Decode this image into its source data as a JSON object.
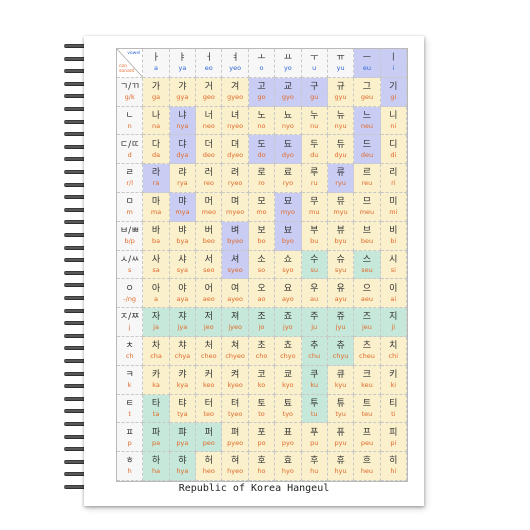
{
  "caption": "Republic of Korea Hangeul",
  "corner": {
    "vowel_label": "vowel",
    "consonant_label": "con\nsonant"
  },
  "colors": {
    "vowel_text": "#2e66d8",
    "consonant_text": "#e06a2a",
    "bg_cream": "#faf0cc",
    "bg_blue": "#c9cdf3",
    "bg_teal": "#c5e8da",
    "bg_header": "#f7f7f7"
  },
  "vowels": [
    {
      "glyph": "ㅏ",
      "rom": "a"
    },
    {
      "glyph": "ㅑ",
      "rom": "ya"
    },
    {
      "glyph": "ㅓ",
      "rom": "eo"
    },
    {
      "glyph": "ㅕ",
      "rom": "yeo"
    },
    {
      "glyph": "ㅗ",
      "rom": "o"
    },
    {
      "glyph": "ㅛ",
      "rom": "yo"
    },
    {
      "glyph": "ㅜ",
      "rom": "u"
    },
    {
      "glyph": "ㅠ",
      "rom": "yu"
    },
    {
      "glyph": "ㅡ",
      "rom": "eu"
    },
    {
      "glyph": "ㅣ",
      "rom": "i"
    }
  ],
  "rows": [
    {
      "jamo": "ㄱ/ㄲ",
      "rom": "g/k",
      "cells": [
        {
          "g": "가",
          "r": "ga",
          "c": "cream"
        },
        {
          "g": "갸",
          "r": "gya",
          "c": "cream"
        },
        {
          "g": "거",
          "r": "geo",
          "c": "cream"
        },
        {
          "g": "겨",
          "r": "gyeo",
          "c": "cream"
        },
        {
          "g": "고",
          "r": "go",
          "c": "blue"
        },
        {
          "g": "교",
          "r": "gyo",
          "c": "blue"
        },
        {
          "g": "구",
          "r": "gu",
          "c": "blue"
        },
        {
          "g": "규",
          "r": "gyu",
          "c": "cream"
        },
        {
          "g": "그",
          "r": "geu",
          "c": "cream"
        },
        {
          "g": "기",
          "r": "gi",
          "c": "blue"
        }
      ]
    },
    {
      "jamo": "ㄴ",
      "rom": "n",
      "cells": [
        {
          "g": "나",
          "r": "na",
          "c": "cream"
        },
        {
          "g": "냐",
          "r": "nya",
          "c": "blue"
        },
        {
          "g": "너",
          "r": "neo",
          "c": "cream"
        },
        {
          "g": "녀",
          "r": "nyeo",
          "c": "cream"
        },
        {
          "g": "노",
          "r": "no",
          "c": "cream"
        },
        {
          "g": "뇨",
          "r": "nyo",
          "c": "cream"
        },
        {
          "g": "누",
          "r": "nu",
          "c": "cream"
        },
        {
          "g": "뉴",
          "r": "nyu",
          "c": "cream"
        },
        {
          "g": "느",
          "r": "neu",
          "c": "blue"
        },
        {
          "g": "니",
          "r": "ni",
          "c": "cream"
        }
      ]
    },
    {
      "jamo": "ㄷ/ㄸ",
      "rom": "d",
      "cells": [
        {
          "g": "다",
          "r": "da",
          "c": "cream"
        },
        {
          "g": "댜",
          "r": "dya",
          "c": "blue"
        },
        {
          "g": "더",
          "r": "deo",
          "c": "cream"
        },
        {
          "g": "뎌",
          "r": "dyeo",
          "c": "cream"
        },
        {
          "g": "도",
          "r": "do",
          "c": "blue"
        },
        {
          "g": "됴",
          "r": "dyo",
          "c": "blue"
        },
        {
          "g": "두",
          "r": "du",
          "c": "cream"
        },
        {
          "g": "듀",
          "r": "dyu",
          "c": "cream"
        },
        {
          "g": "드",
          "r": "deu",
          "c": "blue"
        },
        {
          "g": "디",
          "r": "di",
          "c": "cream"
        }
      ]
    },
    {
      "jamo": "ㄹ",
      "rom": "r/l",
      "cells": [
        {
          "g": "라",
          "r": "ra",
          "c": "blue"
        },
        {
          "g": "랴",
          "r": "rya",
          "c": "cream"
        },
        {
          "g": "러",
          "r": "reo",
          "c": "cream"
        },
        {
          "g": "려",
          "r": "ryeo",
          "c": "cream"
        },
        {
          "g": "로",
          "r": "ro",
          "c": "cream"
        },
        {
          "g": "료",
          "r": "ryo",
          "c": "cream"
        },
        {
          "g": "루",
          "r": "ru",
          "c": "cream"
        },
        {
          "g": "류",
          "r": "ryu",
          "c": "blue"
        },
        {
          "g": "르",
          "r": "reu",
          "c": "cream"
        },
        {
          "g": "리",
          "r": "ri",
          "c": "cream"
        }
      ]
    },
    {
      "jamo": "ㅁ",
      "rom": "m",
      "cells": [
        {
          "g": "마",
          "r": "ma",
          "c": "cream"
        },
        {
          "g": "먀",
          "r": "mya",
          "c": "blue"
        },
        {
          "g": "머",
          "r": "meo",
          "c": "cream"
        },
        {
          "g": "며",
          "r": "myeo",
          "c": "cream"
        },
        {
          "g": "모",
          "r": "mo",
          "c": "cream"
        },
        {
          "g": "묘",
          "r": "myo",
          "c": "blue"
        },
        {
          "g": "무",
          "r": "mu",
          "c": "cream"
        },
        {
          "g": "뮤",
          "r": "myu",
          "c": "cream"
        },
        {
          "g": "므",
          "r": "meu",
          "c": "cream"
        },
        {
          "g": "미",
          "r": "mi",
          "c": "cream"
        }
      ]
    },
    {
      "jamo": "ㅂ/ㅃ",
      "rom": "b/p",
      "cells": [
        {
          "g": "바",
          "r": "ba",
          "c": "cream"
        },
        {
          "g": "뱌",
          "r": "bya",
          "c": "cream"
        },
        {
          "g": "버",
          "r": "beo",
          "c": "cream"
        },
        {
          "g": "벼",
          "r": "byeo",
          "c": "blue"
        },
        {
          "g": "보",
          "r": "bo",
          "c": "cream"
        },
        {
          "g": "뵤",
          "r": "byo",
          "c": "blue"
        },
        {
          "g": "부",
          "r": "bu",
          "c": "cream"
        },
        {
          "g": "뷰",
          "r": "byu",
          "c": "cream"
        },
        {
          "g": "브",
          "r": "beu",
          "c": "cream"
        },
        {
          "g": "비",
          "r": "bi",
          "c": "cream"
        }
      ]
    },
    {
      "jamo": "ㅅ/ㅆ",
      "rom": "s",
      "cells": [
        {
          "g": "사",
          "r": "sa",
          "c": "cream"
        },
        {
          "g": "샤",
          "r": "sya",
          "c": "cream"
        },
        {
          "g": "서",
          "r": "seo",
          "c": "cream"
        },
        {
          "g": "셔",
          "r": "syeo",
          "c": "blue"
        },
        {
          "g": "소",
          "r": "so",
          "c": "cream"
        },
        {
          "g": "쇼",
          "r": "syo",
          "c": "cream"
        },
        {
          "g": "수",
          "r": "su",
          "c": "teal"
        },
        {
          "g": "슈",
          "r": "syu",
          "c": "cream"
        },
        {
          "g": "스",
          "r": "seu",
          "c": "teal"
        },
        {
          "g": "시",
          "r": "si",
          "c": "cream"
        }
      ]
    },
    {
      "jamo": "ㅇ",
      "rom": "-/ng",
      "cells": [
        {
          "g": "아",
          "r": "a",
          "c": "cream"
        },
        {
          "g": "야",
          "r": "aya",
          "c": "cream"
        },
        {
          "g": "어",
          "r": "aeo",
          "c": "cream"
        },
        {
          "g": "여",
          "r": "ayeo",
          "c": "cream"
        },
        {
          "g": "오",
          "r": "ao",
          "c": "cream"
        },
        {
          "g": "요",
          "r": "ayo",
          "c": "cream"
        },
        {
          "g": "우",
          "r": "au",
          "c": "cream"
        },
        {
          "g": "유",
          "r": "ayu",
          "c": "cream"
        },
        {
          "g": "으",
          "r": "aeu",
          "c": "cream"
        },
        {
          "g": "이",
          "r": "ai",
          "c": "cream"
        }
      ]
    },
    {
      "jamo": "ㅈ/ㅉ",
      "rom": "j",
      "cells": [
        {
          "g": "자",
          "r": "ja",
          "c": "teal"
        },
        {
          "g": "쟈",
          "r": "jya",
          "c": "teal"
        },
        {
          "g": "저",
          "r": "jeo",
          "c": "teal"
        },
        {
          "g": "져",
          "r": "jyeo",
          "c": "teal"
        },
        {
          "g": "조",
          "r": "jo",
          "c": "teal"
        },
        {
          "g": "죠",
          "r": "jyo",
          "c": "teal"
        },
        {
          "g": "주",
          "r": "ju",
          "c": "teal"
        },
        {
          "g": "쥬",
          "r": "jyu",
          "c": "teal"
        },
        {
          "g": "즈",
          "r": "jeu",
          "c": "teal"
        },
        {
          "g": "지",
          "r": "ji",
          "c": "teal"
        }
      ]
    },
    {
      "jamo": "ㅊ",
      "rom": "ch",
      "cells": [
        {
          "g": "차",
          "r": "cha",
          "c": "cream"
        },
        {
          "g": "챠",
          "r": "chya",
          "c": "cream"
        },
        {
          "g": "처",
          "r": "cheo",
          "c": "cream"
        },
        {
          "g": "쳐",
          "r": "chyeo",
          "c": "cream"
        },
        {
          "g": "초",
          "r": "cho",
          "c": "cream"
        },
        {
          "g": "쵸",
          "r": "chyo",
          "c": "cream"
        },
        {
          "g": "추",
          "r": "chu",
          "c": "teal"
        },
        {
          "g": "츄",
          "r": "chyu",
          "c": "teal"
        },
        {
          "g": "츠",
          "r": "cheu",
          "c": "cream"
        },
        {
          "g": "치",
          "r": "chi",
          "c": "cream"
        }
      ]
    },
    {
      "jamo": "ㅋ",
      "rom": "k",
      "cells": [
        {
          "g": "카",
          "r": "ka",
          "c": "cream"
        },
        {
          "g": "캬",
          "r": "kya",
          "c": "cream"
        },
        {
          "g": "커",
          "r": "keo",
          "c": "cream"
        },
        {
          "g": "켜",
          "r": "kyeo",
          "c": "cream"
        },
        {
          "g": "코",
          "r": "ko",
          "c": "cream"
        },
        {
          "g": "쿄",
          "r": "kyo",
          "c": "cream"
        },
        {
          "g": "쿠",
          "r": "ku",
          "c": "teal"
        },
        {
          "g": "큐",
          "r": "kyu",
          "c": "cream"
        },
        {
          "g": "크",
          "r": "keu",
          "c": "cream"
        },
        {
          "g": "키",
          "r": "ki",
          "c": "cream"
        }
      ]
    },
    {
      "jamo": "ㅌ",
      "rom": "t",
      "cells": [
        {
          "g": "타",
          "r": "ta",
          "c": "teal"
        },
        {
          "g": "탸",
          "r": "tya",
          "c": "cream"
        },
        {
          "g": "터",
          "r": "teo",
          "c": "cream"
        },
        {
          "g": "텨",
          "r": "tyeo",
          "c": "cream"
        },
        {
          "g": "토",
          "r": "to",
          "c": "cream"
        },
        {
          "g": "툐",
          "r": "tyo",
          "c": "cream"
        },
        {
          "g": "투",
          "r": "tu",
          "c": "teal"
        },
        {
          "g": "튜",
          "r": "tyu",
          "c": "cream"
        },
        {
          "g": "트",
          "r": "teu",
          "c": "cream"
        },
        {
          "g": "티",
          "r": "ti",
          "c": "cream"
        }
      ]
    },
    {
      "jamo": "ㅍ",
      "rom": "p",
      "cells": [
        {
          "g": "파",
          "r": "pa",
          "c": "teal"
        },
        {
          "g": "퍄",
          "r": "pya",
          "c": "teal"
        },
        {
          "g": "퍼",
          "r": "peo",
          "c": "teal"
        },
        {
          "g": "펴",
          "r": "pyeo",
          "c": "cream"
        },
        {
          "g": "포",
          "r": "po",
          "c": "cream"
        },
        {
          "g": "표",
          "r": "pyo",
          "c": "cream"
        },
        {
          "g": "푸",
          "r": "pu",
          "c": "cream"
        },
        {
          "g": "퓨",
          "r": "pyu",
          "c": "cream"
        },
        {
          "g": "프",
          "r": "peu",
          "c": "cream"
        },
        {
          "g": "피",
          "r": "pi",
          "c": "cream"
        }
      ]
    },
    {
      "jamo": "ㅎ",
      "rom": "h",
      "cells": [
        {
          "g": "하",
          "r": "ha",
          "c": "teal"
        },
        {
          "g": "햐",
          "r": "hya",
          "c": "teal"
        },
        {
          "g": "허",
          "r": "heo",
          "c": "cream"
        },
        {
          "g": "혀",
          "r": "hyeo",
          "c": "cream"
        },
        {
          "g": "호",
          "r": "ho",
          "c": "cream"
        },
        {
          "g": "효",
          "r": "hyo",
          "c": "cream"
        },
        {
          "g": "후",
          "r": "hu",
          "c": "cream"
        },
        {
          "g": "휴",
          "r": "hyu",
          "c": "cream"
        },
        {
          "g": "흐",
          "r": "heu",
          "c": "cream"
        },
        {
          "g": "히",
          "r": "hi",
          "c": "cream"
        }
      ]
    }
  ]
}
